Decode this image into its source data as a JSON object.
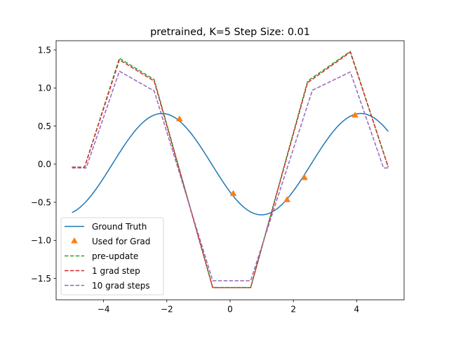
{
  "chart_data": {
    "type": "line",
    "title": "pretrained, K=5 Step Size: 0.01",
    "xlabel": "",
    "ylabel": "",
    "xlim": [
      -5.5,
      5.5
    ],
    "ylim": [
      -1.78,
      1.62
    ],
    "xticks": [
      -4,
      -2,
      0,
      2,
      4
    ],
    "xtick_labels": [
      "−4",
      "−2",
      "0",
      "2",
      "4"
    ],
    "yticks": [
      -1.5,
      -1.0,
      -0.5,
      0.0,
      0.5,
      1.0,
      1.5
    ],
    "ytick_labels": [
      "−1.5",
      "−1.0",
      "−0.5",
      "0.0",
      "0.5",
      "1.0",
      "1.5"
    ],
    "grid": false,
    "legend_position": "lower-left",
    "series": [
      {
        "name": "Ground Truth",
        "style": "solid",
        "color": "#1f77b4",
        "function": {
          "kind": "sine",
          "amplitude": 0.665,
          "frequency": 1.0,
          "phase": 3.724
        },
        "x_range": [
          -5,
          5
        ]
      },
      {
        "name": "Used for Grad",
        "style": "markers",
        "marker": "triangle",
        "color": "#ff7f0e",
        "x": [
          -1.6,
          0.1,
          1.8,
          2.35,
          3.95
        ],
        "y": [
          0.59,
          -0.39,
          -0.47,
          -0.18,
          0.64
        ]
      },
      {
        "name": "pre-update",
        "style": "dashed",
        "color": "#2ca02c",
        "x": [
          -5.0,
          -4.6,
          -3.5,
          -2.4,
          -0.55,
          0.65,
          2.45,
          3.8,
          5.0
        ],
        "y": [
          -0.04,
          -0.04,
          1.39,
          1.11,
          -1.62,
          -1.62,
          1.09,
          1.48,
          -0.04
        ]
      },
      {
        "name": "1 grad step",
        "style": "dashed",
        "color": "#d62728",
        "x": [
          -5.0,
          -4.6,
          -3.5,
          -2.4,
          -0.55,
          0.65,
          2.45,
          3.8,
          5.0
        ],
        "y": [
          -0.04,
          -0.04,
          1.37,
          1.09,
          -1.62,
          -1.62,
          1.07,
          1.47,
          -0.04
        ]
      },
      {
        "name": "10 grad steps",
        "style": "dashed",
        "color": "#9467bd",
        "x": [
          -5.0,
          -4.55,
          -3.5,
          -2.4,
          -0.55,
          0.65,
          2.6,
          3.8,
          4.85,
          5.0
        ],
        "y": [
          -0.05,
          -0.05,
          1.22,
          0.96,
          -1.53,
          -1.53,
          0.97,
          1.21,
          -0.05,
          -0.05
        ]
      }
    ]
  }
}
